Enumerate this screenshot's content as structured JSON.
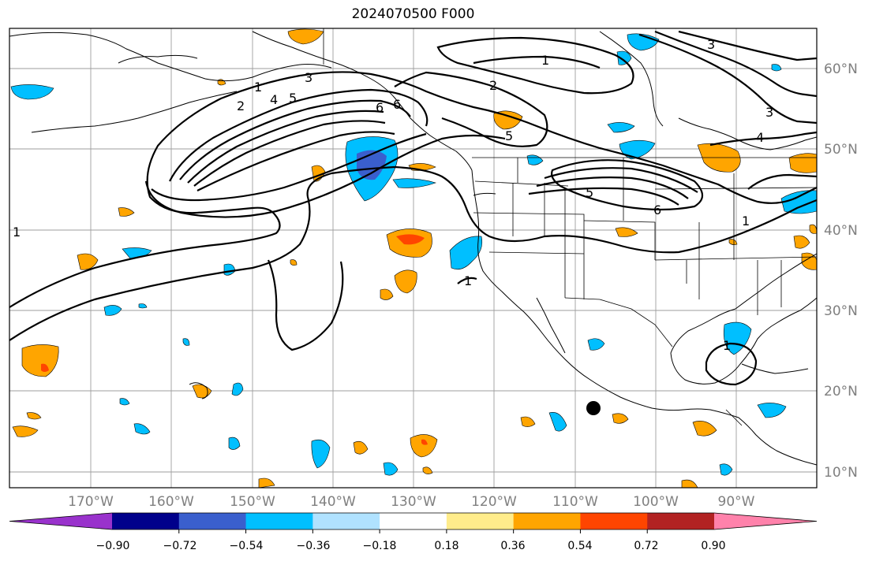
{
  "title": "2024070500 F000",
  "lon_labels": [
    "170°W",
    "160°W",
    "150°W",
    "140°W",
    "130°W",
    "120°W",
    "110°W",
    "100°W",
    "90°W"
  ],
  "lat_labels": [
    "60°N",
    "50°N",
    "40°N",
    "30°N",
    "20°N",
    "10°N"
  ],
  "colorbar": {
    "labels": [
      "−0.90",
      "−0.72",
      "−0.54",
      "−0.36",
      "−0.18",
      "0.18",
      "0.36",
      "0.54",
      "0.72",
      "0.90"
    ],
    "colors": [
      "#9932cc",
      "#00008b",
      "#3a5fcd",
      "#00bfff",
      "#b0e2ff",
      "#ffffff",
      "#ffec8b",
      "#ffa500",
      "#ff4500",
      "#b22222",
      "#ff82ab"
    ]
  },
  "contour_labels": [
    "1",
    "2",
    "3",
    "4",
    "5",
    "6",
    "1",
    "2",
    "3",
    "4",
    "5",
    "6",
    "5",
    "3",
    "6",
    "1",
    "1",
    "1",
    "1"
  ],
  "marker": "station-dot"
}
